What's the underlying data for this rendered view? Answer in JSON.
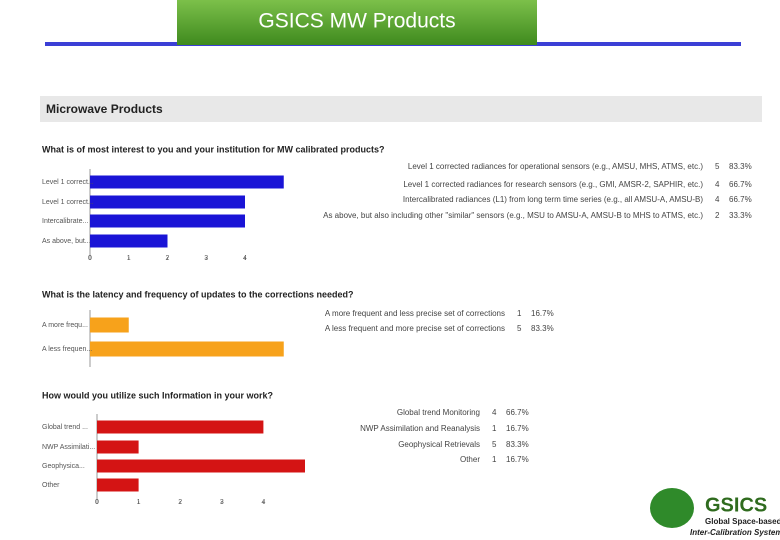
{
  "slide": {
    "title": "GSICS MW  Products",
    "panel_title": "Microwave Products",
    "logo": {
      "name": "GSICS",
      "tagline_1": "Global Space-based",
      "tagline_2": "Inter-Calibration System"
    }
  },
  "chart_data": [
    {
      "type": "bar",
      "orientation": "horizontal",
      "title": "What is of most interest to you and your institution for MW calibrated products?",
      "categories": [
        "Level 1 correct...",
        "Level 1 correct...",
        "Intercalibrate...",
        "As above, but..."
      ],
      "legend_labels": [
        "Level 1 corrected radiances for operational sensors (e.g., AMSU, MHS, ATMS, etc.)",
        "Level 1 corrected radiances for research sensors (e.g., GMI, AMSR-2, SAPHIR, etc.)",
        "Intercalibrated radiances (L1) from long term time series (e.g., all AMSU-A, AMSU-B)",
        "As above, but also including other \"similar\" sensors (e.g., MSU to AMSU-A, AMSU-B to MHS to ATMS, etc.)"
      ],
      "values": [
        5,
        4,
        4,
        2
      ],
      "percent_labels": [
        "83.3%",
        "66.7%",
        "66.7%",
        "33.3%"
      ],
      "color": "#1a14d6",
      "xlim": [
        0,
        5
      ],
      "xticks": [
        0,
        1,
        2,
        3,
        4
      ]
    },
    {
      "type": "bar",
      "orientation": "horizontal",
      "title": "What is the latency and frequency of updates to the corrections needed?",
      "categories": [
        "A more frequ...",
        "A less frequen..."
      ],
      "legend_labels": [
        "A more frequent and less precise set of corrections",
        "A less frequent and more precise set of corrections"
      ],
      "values": [
        1,
        5
      ],
      "percent_labels": [
        "16.7%",
        "83.3%"
      ],
      "color": "#f7a21b",
      "xlim": [
        0,
        5
      ]
    },
    {
      "type": "bar",
      "orientation": "horizontal",
      "title": "How would you utilize such Information in your work?",
      "categories": [
        "Global trend ...",
        "NWP Assimilati...",
        "Geophysica...",
        "Other"
      ],
      "legend_labels": [
        "Global trend Monitoring",
        "NWP Assimilation and Reanalysis",
        "Geophysical Retrievals",
        "Other"
      ],
      "values": [
        4,
        1,
        5,
        1
      ],
      "percent_labels": [
        "66.7%",
        "16.7%",
        "83.3%",
        "16.7%"
      ],
      "color": "#d41414",
      "xlim": [
        0,
        5
      ],
      "xticks": [
        0,
        1,
        2,
        3,
        4
      ]
    }
  ]
}
